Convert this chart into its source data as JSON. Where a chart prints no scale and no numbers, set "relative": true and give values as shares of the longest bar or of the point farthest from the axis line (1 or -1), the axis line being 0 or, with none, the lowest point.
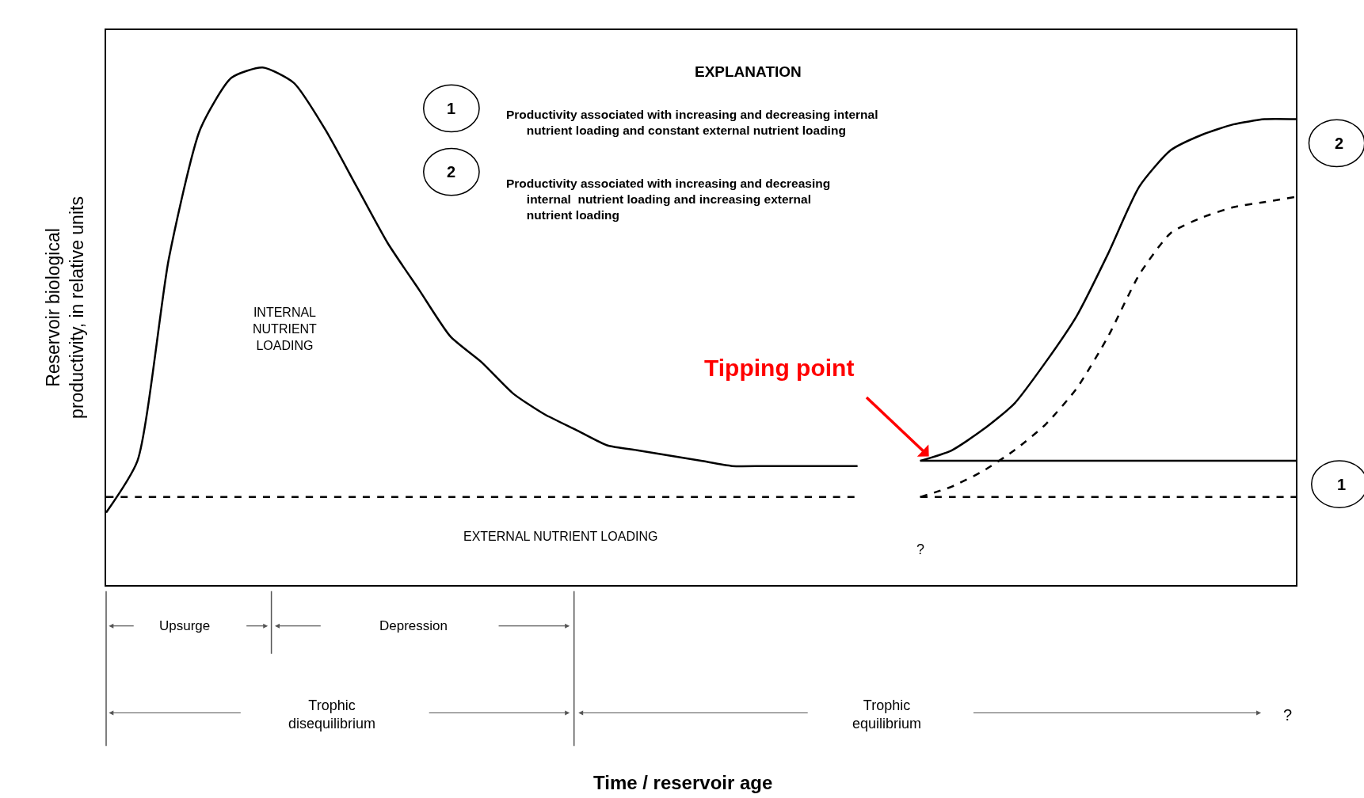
{
  "chart_data": {
    "type": "line",
    "relative": true,
    "tick_labels": false,
    "ylabel": "Reservoir biological\nproductivity, in relative units",
    "categories": [
      null,
      null,
      null,
      null,
      null,
      null,
      null,
      null,
      null,
      null,
      null,
      null,
      null,
      null,
      null,
      null,
      null,
      null,
      null,
      null,
      null,
      null,
      null,
      null,
      null,
      null,
      null,
      null,
      null,
      null,
      null,
      null,
      null,
      null,
      null,
      null,
      null,
      null,
      null
    ],
    "series": [
      {
        "color": "#000000",
        "line_style": "solid",
        "values": [
          0.14,
          0.24,
          0.63,
          0.88,
          0.98,
          1.0,
          0.97,
          0.88,
          0.77,
          0.66,
          0.57,
          0.48,
          0.43,
          0.37,
          0.33,
          0.3,
          0.27,
          0.26,
          0.25,
          0.24,
          0.23,
          0.23,
          0.23,
          0.23,
          0.23,
          null,
          0.24,
          0.24,
          0.24,
          0.24,
          0.24,
          0.24,
          0.24,
          0.24,
          0.24,
          0.24,
          0.24,
          0.24,
          0.24
        ]
      },
      {
        "color": "#000000",
        "line_style": "solid",
        "values": [
          null,
          null,
          null,
          null,
          null,
          null,
          null,
          null,
          null,
          null,
          null,
          null,
          null,
          null,
          null,
          null,
          null,
          null,
          null,
          null,
          null,
          null,
          null,
          null,
          null,
          null,
          0.24,
          0.26,
          0.3,
          0.35,
          0.43,
          0.52,
          0.64,
          0.77,
          0.84,
          0.87,
          0.89,
          0.9,
          0.9
        ]
      },
      {
        "color": "#000000",
        "line_style": "dashed",
        "values": [
          0.17,
          0.17,
          0.17,
          0.17,
          0.17,
          0.17,
          0.17,
          0.17,
          0.17,
          0.17,
          0.17,
          0.17,
          0.17,
          0.17,
          0.17,
          0.17,
          0.17,
          0.17,
          0.17,
          0.17,
          0.17,
          0.17,
          0.17,
          0.17,
          0.17,
          null,
          0.17,
          0.17,
          0.17,
          0.17,
          0.17,
          0.17,
          0.17,
          0.17,
          0.17,
          0.17,
          0.17,
          0.17,
          0.17
        ]
      },
      {
        "color": "#000000",
        "line_style": "dashed",
        "values": [
          null,
          null,
          null,
          null,
          null,
          null,
          null,
          null,
          null,
          null,
          null,
          null,
          null,
          null,
          null,
          null,
          null,
          null,
          null,
          null,
          null,
          null,
          null,
          null,
          null,
          null,
          0.17,
          0.19,
          0.22,
          0.26,
          0.31,
          0.38,
          0.48,
          0.6,
          0.68,
          0.71,
          0.73,
          0.74,
          0.75
        ]
      }
    ],
    "annotations": [
      "EXPLANATION",
      "1",
      "Productivity associated with increasing and decreasing internal\n      nutrient loading and constant external nutrient loading",
      "2",
      "Productivity associated with increasing and decreasing\n      internal  nutrient loading and increasing external\n      nutrient loading",
      "INTERNAL\nNUTRIENT\nLOADING",
      "EXTERNAL NUTRIENT LOADING",
      "Tipping point",
      "?",
      "2",
      "1",
      "Upsurge",
      "Depression",
      "Trophic\ndisequilibrium",
      "Trophic\nequilibrium",
      "?",
      "Time / reservoir age"
    ]
  }
}
